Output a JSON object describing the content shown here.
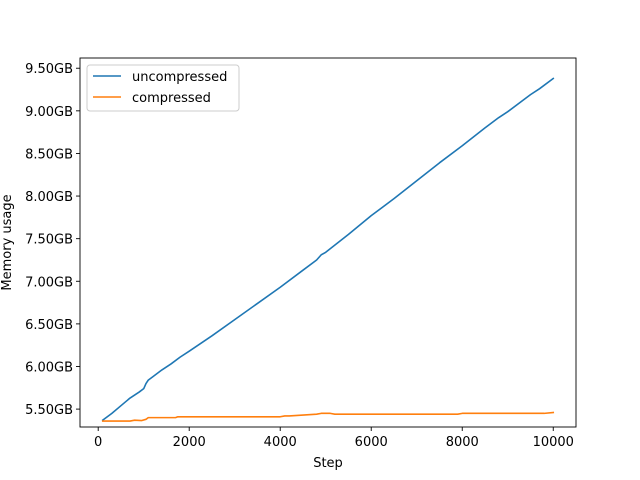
{
  "chart_data": {
    "type": "line",
    "xlabel": "Step",
    "ylabel": "Memory usage",
    "xlim": [
      -400,
      10500
    ],
    "ylim": [
      5.29,
      9.62
    ],
    "xticks": [
      0,
      2000,
      4000,
      6000,
      8000,
      10000
    ],
    "xtick_labels": [
      "0",
      "2000",
      "4000",
      "6000",
      "8000",
      "10000"
    ],
    "yticks": [
      5.5,
      6.0,
      6.5,
      7.0,
      7.5,
      8.0,
      8.5,
      9.0,
      9.5
    ],
    "ytick_labels": [
      "5.50GB",
      "6.00GB",
      "6.50GB",
      "7.00GB",
      "7.50GB",
      "8.00GB",
      "8.50GB",
      "9.00GB",
      "9.50GB"
    ],
    "grid": false,
    "legend_position": "top-left",
    "series": [
      {
        "name": "uncompressed",
        "color": "#1f77b4",
        "x": [
          100,
          300,
          500,
          700,
          900,
          1000,
          1050,
          1100,
          1200,
          1400,
          1600,
          1800,
          2000,
          2500,
          3000,
          3500,
          4000,
          4500,
          4800,
          4900,
          5000,
          5500,
          6000,
          6500,
          7000,
          7500,
          8000,
          8500,
          8800,
          9000,
          9500,
          9700,
          10000
        ],
        "y": [
          5.37,
          5.45,
          5.54,
          5.63,
          5.7,
          5.74,
          5.8,
          5.84,
          5.88,
          5.96,
          6.03,
          6.11,
          6.18,
          6.36,
          6.55,
          6.74,
          6.93,
          7.13,
          7.25,
          7.31,
          7.34,
          7.55,
          7.77,
          7.97,
          8.18,
          8.39,
          8.59,
          8.8,
          8.92,
          8.99,
          9.19,
          9.26,
          9.38
        ]
      },
      {
        "name": "compressed",
        "color": "#ff7f0e",
        "x": [
          100,
          400,
          700,
          800,
          950,
          1050,
          1100,
          1500,
          1700,
          1750,
          2500,
          3500,
          4000,
          4100,
          4200,
          4500,
          4800,
          4900,
          5100,
          5200,
          6000,
          7000,
          7900,
          8000,
          9000,
          9800,
          10000
        ],
        "y": [
          5.36,
          5.36,
          5.36,
          5.37,
          5.365,
          5.38,
          5.4,
          5.4,
          5.4,
          5.41,
          5.41,
          5.41,
          5.41,
          5.42,
          5.42,
          5.43,
          5.44,
          5.45,
          5.45,
          5.44,
          5.44,
          5.44,
          5.44,
          5.45,
          5.45,
          5.45,
          5.46
        ]
      }
    ]
  }
}
